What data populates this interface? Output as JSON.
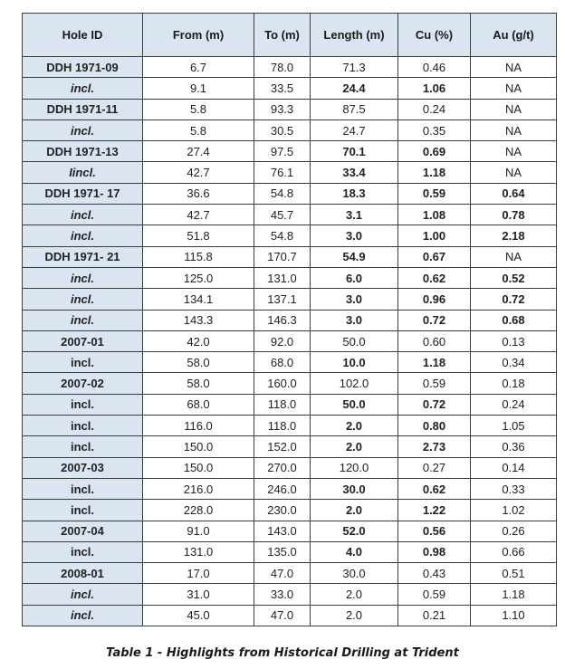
{
  "table": {
    "headers": [
      "Hole ID",
      "From (m)",
      "To (m)",
      "Length (m)",
      "Cu (%)",
      "Au (g/t)"
    ],
    "rows": [
      {
        "id": "DDH 1971-09",
        "italic": false,
        "cells": [
          "6.7",
          "78.0",
          "71.3",
          "0.46",
          "NA"
        ],
        "bold": [
          false,
          false,
          false,
          false,
          false
        ]
      },
      {
        "id": "incl.",
        "italic": true,
        "cells": [
          "9.1",
          "33.5",
          "24.4",
          "1.06",
          "NA"
        ],
        "bold": [
          false,
          false,
          true,
          true,
          false
        ]
      },
      {
        "id": "DDH 1971-11",
        "italic": false,
        "cells": [
          "5.8",
          "93.3",
          "87.5",
          "0.24",
          "NA"
        ],
        "bold": [
          false,
          false,
          false,
          false,
          false
        ]
      },
      {
        "id": "incl.",
        "italic": true,
        "cells": [
          "5.8",
          "30.5",
          "24.7",
          "0.35",
          "NA"
        ],
        "bold": [
          false,
          false,
          false,
          false,
          false
        ]
      },
      {
        "id": "DDH 1971-13",
        "italic": false,
        "cells": [
          "27.4",
          "97.5",
          "70.1",
          "0.69",
          "NA"
        ],
        "bold": [
          false,
          false,
          true,
          true,
          false
        ]
      },
      {
        "id": "Iincl.",
        "italic": true,
        "cells": [
          "42.7",
          "76.1",
          "33.4",
          "1.18",
          "NA"
        ],
        "bold": [
          false,
          false,
          true,
          true,
          false
        ]
      },
      {
        "id": "DDH 1971- 17",
        "italic": false,
        "cells": [
          "36.6",
          "54.8",
          "18.3",
          "0.59",
          "0.64"
        ],
        "bold": [
          false,
          false,
          true,
          true,
          true
        ]
      },
      {
        "id": "incl.",
        "italic": true,
        "cells": [
          "42.7",
          "45.7",
          "3.1",
          "1.08",
          "0.78"
        ],
        "bold": [
          false,
          false,
          true,
          true,
          true
        ]
      },
      {
        "id": "incl.",
        "italic": true,
        "cells": [
          "51.8",
          "54.8",
          "3.0",
          "1.00",
          "2.18"
        ],
        "bold": [
          false,
          false,
          true,
          true,
          true
        ]
      },
      {
        "id": "DDH 1971- 21",
        "italic": false,
        "cells": [
          "115.8",
          "170.7",
          "54.9",
          "0.67",
          "NA"
        ],
        "bold": [
          false,
          false,
          true,
          true,
          false
        ]
      },
      {
        "id": "incl.",
        "italic": true,
        "cells": [
          "125.0",
          "131.0",
          "6.0",
          "0.62",
          "0.52"
        ],
        "bold": [
          false,
          false,
          true,
          true,
          true
        ]
      },
      {
        "id": "incl.",
        "italic": true,
        "cells": [
          "134.1",
          "137.1",
          "3.0",
          "0.96",
          "0.72"
        ],
        "bold": [
          false,
          false,
          true,
          true,
          true
        ]
      },
      {
        "id": "incl.",
        "italic": true,
        "cells": [
          "143.3",
          "146.3",
          "3.0",
          "0.72",
          "0.68"
        ],
        "bold": [
          false,
          false,
          true,
          true,
          true
        ]
      },
      {
        "id": "2007-01",
        "italic": false,
        "cells": [
          "42.0",
          "92.0",
          "50.0",
          "0.60",
          "0.13"
        ],
        "bold": [
          false,
          false,
          false,
          false,
          false
        ]
      },
      {
        "id": "incl.",
        "italic": false,
        "cells": [
          "58.0",
          "68.0",
          "10.0",
          "1.18",
          "0.34"
        ],
        "bold": [
          false,
          false,
          true,
          true,
          false
        ]
      },
      {
        "id": "2007-02",
        "italic": false,
        "cells": [
          "58.0",
          "160.0",
          "102.0",
          "0.59",
          "0.18"
        ],
        "bold": [
          false,
          false,
          false,
          false,
          false
        ]
      },
      {
        "id": "incl.",
        "italic": false,
        "cells": [
          "68.0",
          "118.0",
          "50.0",
          "0.72",
          "0.24"
        ],
        "bold": [
          false,
          false,
          true,
          true,
          false
        ]
      },
      {
        "id": "incl.",
        "italic": false,
        "cells": [
          "116.0",
          "118.0",
          "2.0",
          "0.80",
          "1.05"
        ],
        "bold": [
          false,
          false,
          true,
          true,
          false
        ]
      },
      {
        "id": "incl.",
        "italic": false,
        "cells": [
          "150.0",
          "152.0",
          "2.0",
          "2.73",
          "0.36"
        ],
        "bold": [
          false,
          false,
          true,
          true,
          false
        ]
      },
      {
        "id": "2007-03",
        "italic": false,
        "cells": [
          "150.0",
          "270.0",
          "120.0",
          "0.27",
          "0.14"
        ],
        "bold": [
          false,
          false,
          false,
          false,
          false
        ]
      },
      {
        "id": "incl.",
        "italic": false,
        "cells": [
          "216.0",
          "246.0",
          "30.0",
          "0.62",
          "0.33"
        ],
        "bold": [
          false,
          false,
          true,
          true,
          false
        ]
      },
      {
        "id": "incl.",
        "italic": false,
        "cells": [
          "228.0",
          "230.0",
          "2.0",
          "1.22",
          "1.02"
        ],
        "bold": [
          false,
          false,
          true,
          true,
          false
        ]
      },
      {
        "id": "2007-04",
        "italic": false,
        "cells": [
          "91.0",
          "143.0",
          "52.0",
          "0.56",
          "0.26"
        ],
        "bold": [
          false,
          false,
          true,
          true,
          false
        ]
      },
      {
        "id": "incl.",
        "italic": false,
        "cells": [
          "131.0",
          "135.0",
          "4.0",
          "0.98",
          "0.66"
        ],
        "bold": [
          false,
          false,
          true,
          true,
          false
        ]
      },
      {
        "id": "2008-01",
        "italic": false,
        "cells": [
          "17.0",
          "47.0",
          "30.0",
          "0.43",
          "0.51"
        ],
        "bold": [
          false,
          false,
          false,
          false,
          false
        ]
      },
      {
        "id": "incl.",
        "italic": true,
        "cells": [
          "31.0",
          "33.0",
          "2.0",
          "0.59",
          "1.18"
        ],
        "bold": [
          false,
          false,
          false,
          false,
          false
        ]
      },
      {
        "id": "incl.",
        "italic": true,
        "cells": [
          "45.0",
          "47.0",
          "2.0",
          "0.21",
          "1.10"
        ],
        "bold": [
          false,
          false,
          false,
          false,
          false
        ]
      }
    ]
  },
  "caption": "Table 1 - Highlights from Historical Drilling at Trident",
  "colors": {
    "header_bg": "#dbe4f1",
    "id_col_bg": "#dbe4f1",
    "border": "#3b3b3b"
  }
}
